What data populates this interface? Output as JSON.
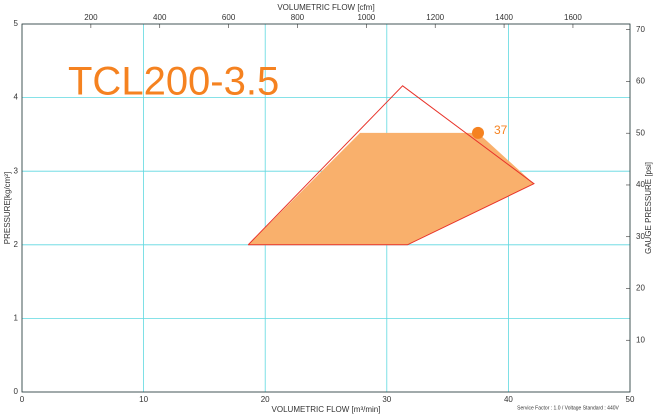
{
  "chart_data": {
    "type": "envelope",
    "title": "TCL200-3.5",
    "xlabel": "VOLUMETRIC FLOW [m³/min]",
    "ylabel": "PRESSURE[kg/cm²]",
    "x2label": "VOLUMETRIC FLOW [cfm]",
    "y2label": "GAUGE PRESSURE [psi]",
    "note": "Service Factor : 1.0 / Voltage Standard : 440V",
    "xlim": [
      0,
      50
    ],
    "xticks": [
      0,
      10,
      20,
      30,
      40,
      50
    ],
    "ylim": [
      0,
      5
    ],
    "yticks": [
      0,
      1,
      2,
      3,
      4,
      5
    ],
    "x2lim": [
      0,
      1765.7
    ],
    "x2ticks": [
      200,
      400,
      600,
      800,
      1000,
      1200,
      1400,
      1600
    ],
    "y2lim": [
      0,
      71.1
    ],
    "y2ticks": [
      10,
      20,
      30,
      40,
      50,
      60,
      70
    ],
    "grid": true,
    "series": [
      {
        "style": "fill",
        "color": "#f9b06c",
        "x": [
          18.6,
          27.8,
          37.5,
          42.1,
          31.7
        ],
        "values": [
          2,
          3.52,
          3.52,
          2.83,
          2
        ]
      },
      {
        "style": "outline",
        "color": "#e8332a",
        "x": [
          18.6,
          31.3,
          42.1,
          31.7,
          18.6
        ],
        "values": [
          2,
          4.16,
          2.83,
          2,
          2
        ]
      }
    ],
    "point": {
      "x": 37.5,
      "y": 3.52,
      "label": "37",
      "color": "#f58220"
    }
  }
}
